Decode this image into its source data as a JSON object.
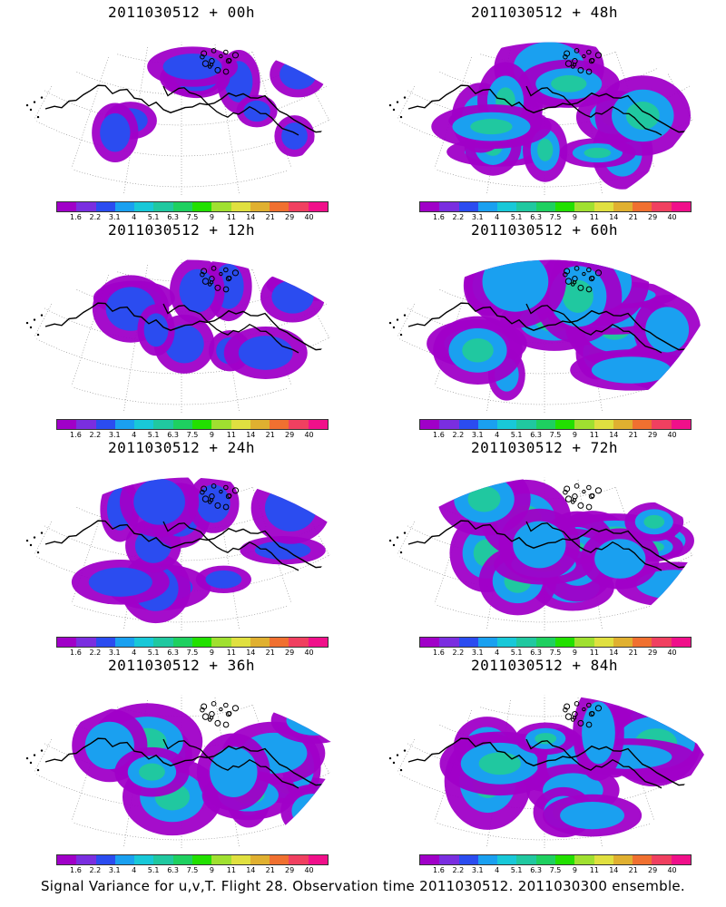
{
  "panels": [
    {
      "title": "2011030512 + 00h"
    },
    {
      "title": "2011030512 + 48h"
    },
    {
      "title": "2011030512 + 12h"
    },
    {
      "title": "2011030512 + 60h"
    },
    {
      "title": "2011030512 + 24h"
    },
    {
      "title": "2011030512 + 72h"
    },
    {
      "title": "2011030512 + 36h"
    },
    {
      "title": "2011030512 + 84h"
    }
  ],
  "legend": {
    "labels": [
      "1.6",
      "2.2",
      "3.1",
      "4",
      "5.1",
      "6.3",
      "7.5",
      "9",
      "11",
      "14",
      "21",
      "29",
      "40"
    ],
    "colors": [
      "#a000c8",
      "#7a2ee0",
      "#2b4cf0",
      "#1aa0f0",
      "#18c8d8",
      "#20c8a0",
      "#1ed060",
      "#22e000",
      "#a0e030",
      "#e0e040",
      "#e0b030",
      "#f07030",
      "#f04060",
      "#f0108a"
    ]
  },
  "caption": "Signal Variance for u,v,T. Flight 28. Observation time 2011030512. 2011030300 ensemble."
}
